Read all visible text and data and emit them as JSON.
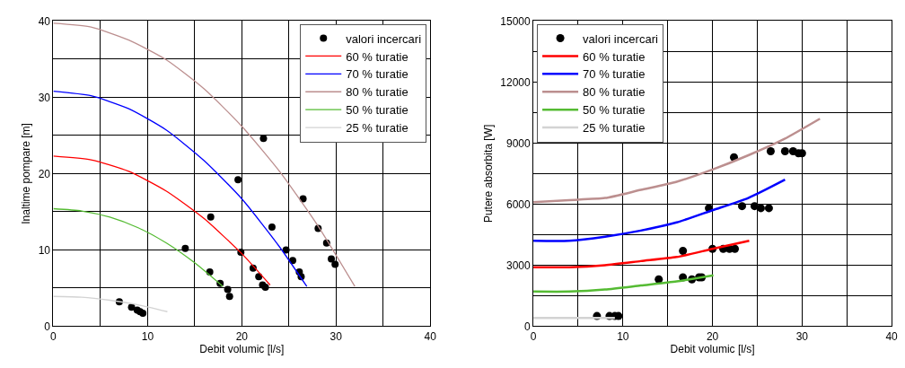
{
  "chart_data": [
    {
      "type": "line",
      "xlabel": "Debit volumic [l/s]",
      "ylabel": "Inaltime pompare [m]",
      "xlim": [
        0,
        40
      ],
      "ylim": [
        0,
        40
      ],
      "xticks": [
        0,
        {
          "value": 5,
          "label": null
        },
        10,
        {
          "value": 15,
          "label": null
        },
        20,
        {
          "value": 25,
          "label": null
        },
        30,
        {
          "value": 35,
          "label": null
        },
        40
      ],
      "yticks": [
        0,
        {
          "value": 5,
          "label": null
        },
        10,
        {
          "value": 15,
          "label": null
        },
        20,
        {
          "value": 25,
          "label": null
        },
        30,
        {
          "value": 35,
          "label": null
        },
        40
      ],
      "grid": true,
      "legend": "top right",
      "series": [
        {
          "name": "valori incercari",
          "type": "scatter",
          "marker": "circle",
          "color": "#000000",
          "x": [
            7.0,
            8.3,
            8.9,
            9.2,
            9.5,
            14.0,
            16.6,
            16.7,
            17.7,
            18.5,
            18.7,
            19.6,
            19.9,
            21.2,
            21.8,
            22.2,
            22.5,
            22.3,
            23.2,
            24.7,
            25.4,
            26.1,
            26.3,
            26.5,
            28.1,
            29.0,
            29.5,
            29.9
          ],
          "values": [
            3.2,
            2.5,
            2.1,
            1.9,
            1.7,
            10.2,
            7.1,
            14.3,
            5.6,
            4.8,
            3.9,
            19.2,
            9.7,
            7.6,
            6.5,
            5.4,
            5.1,
            24.6,
            13.0,
            10.0,
            8.6,
            7.1,
            6.5,
            16.7,
            12.8,
            10.9,
            8.8,
            8.1
          ]
        },
        {
          "name": "60 % turatie",
          "color": "#ff0000",
          "x": [
            0,
            4,
            8,
            12,
            16,
            20,
            23
          ],
          "values": [
            22.3,
            21.8,
            20.3,
            17.7,
            14.1,
            9.5,
            5.4
          ]
        },
        {
          "name": "70 % turatie",
          "color": "#0000ff",
          "x": [
            0,
            4,
            8,
            12,
            16,
            20,
            24,
            26.9
          ],
          "values": [
            30.8,
            30.2,
            28.5,
            25.7,
            21.7,
            16.7,
            10.4,
            5.2
          ]
        },
        {
          "name": "80 % turatie",
          "color": "#bc8f8f",
          "x": [
            0,
            4,
            8,
            12,
            16,
            20,
            24,
            28,
            32
          ],
          "values": [
            39.7,
            39.2,
            37.5,
            34.9,
            31.1,
            26.2,
            20.3,
            13.3,
            5.2
          ]
        },
        {
          "name": "50 % turatie",
          "color": "#55bb33",
          "x": [
            0,
            3,
            6,
            9,
            12,
            15,
            18
          ],
          "values": [
            15.4,
            15.1,
            14.3,
            12.9,
            10.9,
            8.3,
            5.2
          ]
        },
        {
          "name": "25 % turatie",
          "color": "#d3d3d3",
          "x": [
            0,
            3,
            6,
            9,
            12.1
          ],
          "values": [
            3.9,
            3.8,
            3.4,
            2.8,
            1.9
          ]
        }
      ]
    },
    {
      "type": "line",
      "xlabel": "Debit volumic [l/s]",
      "ylabel": "Putere absorbita [W]",
      "xlim": [
        0,
        40
      ],
      "ylim": [
        0,
        15000
      ],
      "xticks": [
        0,
        {
          "value": 5,
          "label": null
        },
        10,
        {
          "value": 15,
          "label": null
        },
        20,
        {
          "value": 25,
          "label": null
        },
        30,
        {
          "value": 35,
          "label": null
        },
        40
      ],
      "yticks": [
        0,
        {
          "value": 1500,
          "label": null
        },
        3000,
        {
          "value": 4500,
          "label": null
        },
        6000,
        {
          "value": 7500,
          "label": null
        },
        9000,
        {
          "value": 10500,
          "label": null
        },
        12000,
        {
          "value": 13500,
          "label": null
        },
        15000
      ],
      "grid": true,
      "legend": "top left",
      "series": [
        {
          "name": "valori incercari",
          "type": "scatter",
          "marker": "circle",
          "color": "#000000",
          "x": [
            7.1,
            8.5,
            9.1,
            9.5,
            14.0,
            16.7,
            17.7,
            18.5,
            18.8,
            16.7,
            20.0,
            21.2,
            21.9,
            22.5,
            19.6,
            23.3,
            24.7,
            25.4,
            26.3,
            22.4,
            26.5,
            28.1,
            29.0,
            29.6,
            30.0
          ],
          "values": [
            500,
            500,
            500,
            500,
            2300,
            2400,
            2300,
            2400,
            2400,
            3700,
            3800,
            3800,
            3800,
            3800,
            5800,
            5900,
            5900,
            5800,
            5800,
            8300,
            8600,
            8600,
            8600,
            8500,
            8500
          ]
        },
        {
          "name": "60 % turatie",
          "color": "#ff0000",
          "x": [
            0,
            4,
            8,
            12,
            16,
            20,
            24.1
          ],
          "values": [
            2900,
            2900,
            3000,
            3200,
            3400,
            3800,
            4200
          ]
        },
        {
          "name": "70 % turatie",
          "color": "#0000ff",
          "x": [
            0,
            4,
            8,
            12,
            16,
            20,
            24,
            28.1
          ],
          "values": [
            4200,
            4200,
            4400,
            4700,
            5100,
            5700,
            6300,
            7200
          ]
        },
        {
          "name": "80 % turatie",
          "color": "#bc8f8f",
          "x": [
            0,
            4,
            8,
            12,
            16,
            20,
            24,
            28,
            32
          ],
          "values": [
            6100,
            6200,
            6300,
            6700,
            7100,
            7700,
            8400,
            9200,
            10200
          ]
        },
        {
          "name": "50 % turatie",
          "color": "#55bb33",
          "x": [
            0,
            4,
            8,
            12,
            16,
            20.1
          ],
          "values": [
            1700,
            1700,
            1800,
            2000,
            2200,
            2500
          ]
        },
        {
          "name": "25 % turatie",
          "color": "#d3d3d3",
          "x": [
            0,
            3,
            6,
            9.1
          ],
          "values": [
            400,
            400,
            400,
            400
          ]
        }
      ]
    }
  ]
}
